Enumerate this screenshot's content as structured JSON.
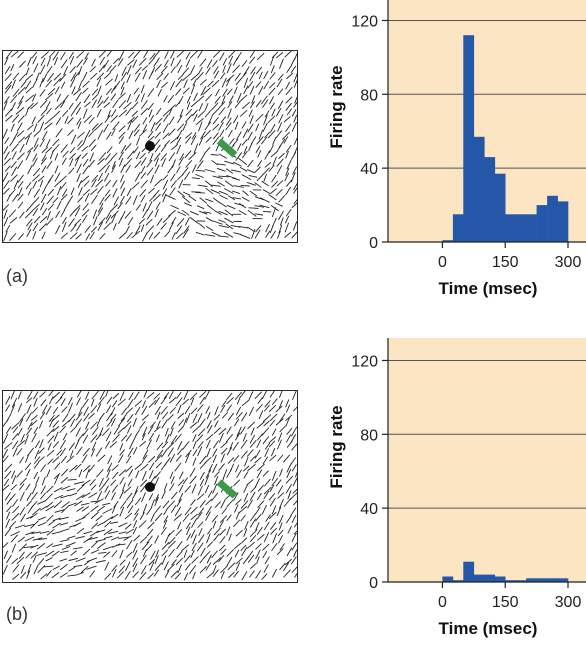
{
  "figure": {
    "panels": [
      {
        "label": "(a)",
        "stimulus": {
          "fixation_dot_color": "#111111",
          "bar_color": "#3a9a4a",
          "figure_region": "right"
        }
      },
      {
        "label": "(b)",
        "stimulus": {
          "fixation_dot_color": "#111111",
          "bar_color": "#3a9a4a",
          "figure_region": "left"
        }
      }
    ]
  },
  "colors": {
    "chart_background": "#fbe5c2",
    "bar": "#2557a8",
    "grid": "#555555"
  },
  "chart_data": [
    {
      "type": "bar",
      "title": "",
      "xlabel": "Time (msec)",
      "ylabel": "Firing rate",
      "xlim": [
        -130,
        300
      ],
      "ylim": [
        0,
        130
      ],
      "xticks": [
        0,
        150,
        300
      ],
      "yticks": [
        0,
        40,
        80,
        120
      ],
      "grid": true,
      "bin_width": 25,
      "bin_starts": [
        0,
        25,
        50,
        75,
        100,
        125,
        150,
        175,
        200,
        225,
        250,
        275
      ],
      "values": [
        1,
        15,
        112,
        57,
        46,
        37,
        15,
        15,
        15,
        20,
        25,
        22
      ]
    },
    {
      "type": "bar",
      "title": "",
      "xlabel": "Time (msec)",
      "ylabel": "Firing rate",
      "xlim": [
        -130,
        300
      ],
      "ylim": [
        0,
        130
      ],
      "xticks": [
        0,
        150,
        300
      ],
      "yticks": [
        0,
        40,
        80,
        120
      ],
      "grid": true,
      "bin_width": 25,
      "bin_starts": [
        0,
        25,
        50,
        75,
        100,
        125,
        150,
        175,
        200,
        225,
        250,
        275
      ],
      "values": [
        3,
        1,
        11,
        4,
        4,
        3,
        1,
        1,
        2,
        2,
        2,
        2
      ]
    }
  ]
}
